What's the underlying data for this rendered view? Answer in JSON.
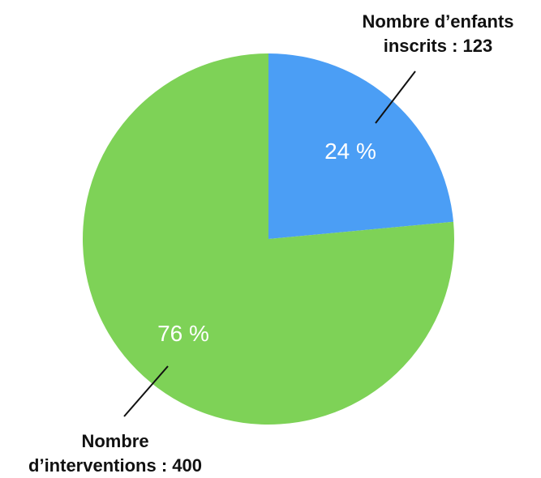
{
  "chart_data": {
    "type": "pie",
    "slices": [
      {
        "label_lines": [
          "Nombre d’enfants",
          "inscrits : 123"
        ],
        "value": 123,
        "percent_label": "24 %",
        "color": "#4b9ef5"
      },
      {
        "label_lines": [
          "Nombre",
          "d’interventions : 400"
        ],
        "value": 400,
        "percent_label": "76 %",
        "color": "#7ed257"
      }
    ],
    "start_angle_deg": 0,
    "direction": "clockwise"
  }
}
